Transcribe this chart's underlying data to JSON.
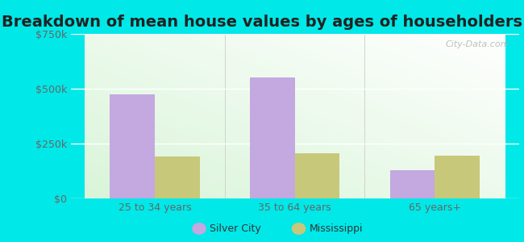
{
  "title": "Breakdown of mean house values by ages of householders",
  "categories": [
    "25 to 34 years",
    "35 to 64 years",
    "65 years+"
  ],
  "series": [
    {
      "label": "Silver City",
      "values": [
        475000,
        550000,
        130000
      ],
      "color": "#c4a8e0"
    },
    {
      "label": "Mississippi",
      "values": [
        190000,
        205000,
        195000
      ],
      "color": "#c8c87a"
    }
  ],
  "ylim": [
    0,
    750000
  ],
  "yticks": [
    0,
    250000,
    500000,
    750000
  ],
  "ytick_labels": [
    "$0",
    "$250k",
    "$500k",
    "$750k"
  ],
  "bar_width": 0.32,
  "title_fontsize": 14,
  "outer_bg_color": "#00e8e8",
  "watermark": "City-Data.com",
  "grid_color": "#ffffff",
  "tick_color": "#666666",
  "title_color": "#222222"
}
